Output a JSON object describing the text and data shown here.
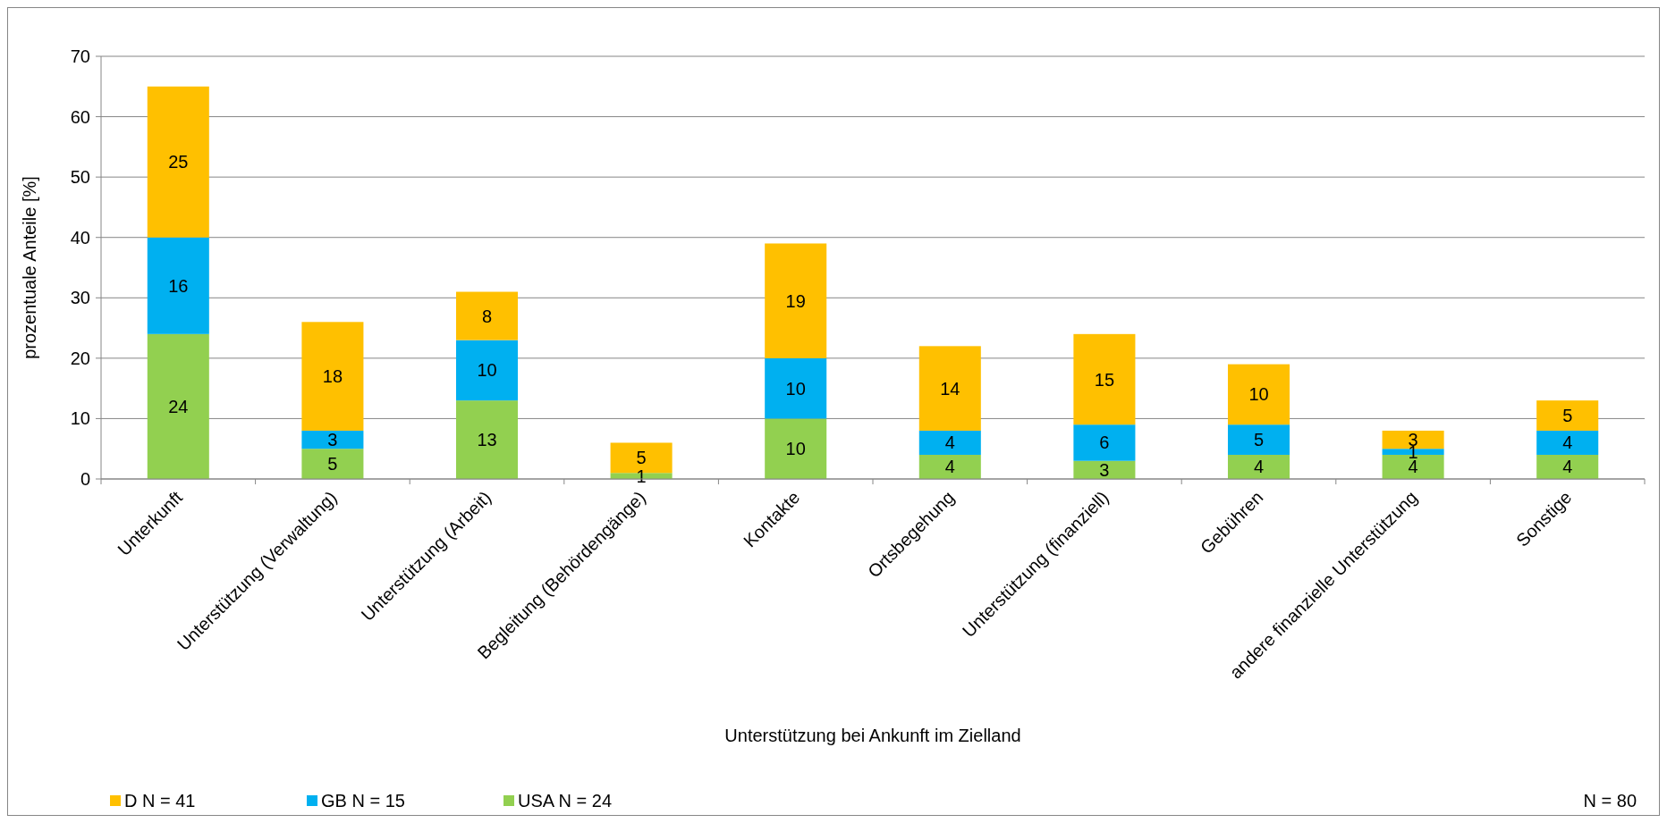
{
  "chart_data": {
    "type": "bar",
    "stacked": true,
    "xlabel": "Unterstützung bei Ankunft im Zielland",
    "ylabel": "prozentuale Anteile [%]",
    "categories": [
      "Unterkunft",
      "Unterstützung (Verwaltung)",
      "Unterstützung (Arbeit)",
      "Begleitung (Behördengänge)",
      "Kontakte",
      "Ortsbegehung",
      "Unterstützung (finanziell)",
      "Gebühren",
      "andere finanzielle Unterstützung",
      "Sonstige"
    ],
    "series": [
      {
        "name": "USA N = 24",
        "color": "#92d050",
        "values": [
          24,
          5,
          13,
          1,
          10,
          4,
          3,
          4,
          4,
          4
        ],
        "value_labels": [
          "24",
          "5",
          "13",
          "1",
          "10",
          "4",
          "3",
          "4",
          "4",
          "4"
        ]
      },
      {
        "name": "GB N = 15",
        "color": "#00b0f0",
        "values": [
          16,
          3,
          10,
          0,
          10,
          4,
          6,
          5,
          1,
          4
        ],
        "value_labels": [
          "16",
          "3",
          "10",
          null,
          "10",
          "4",
          "6",
          "5",
          "1",
          "4"
        ]
      },
      {
        "name": "D N = 41",
        "color": "#ffc000",
        "values": [
          25,
          18,
          8,
          5,
          19,
          14,
          15,
          10,
          3,
          5
        ],
        "value_labels": [
          "25",
          "18",
          "8",
          "5",
          "19",
          "14",
          "15",
          "10",
          "3",
          "5"
        ]
      }
    ],
    "ylim": [
      0,
      70
    ],
    "yticks": [
      0,
      10,
      20,
      30,
      40,
      50,
      60,
      70
    ],
    "grid": "y",
    "legend": "bottom left",
    "annotations": [
      "N = 80"
    ]
  }
}
